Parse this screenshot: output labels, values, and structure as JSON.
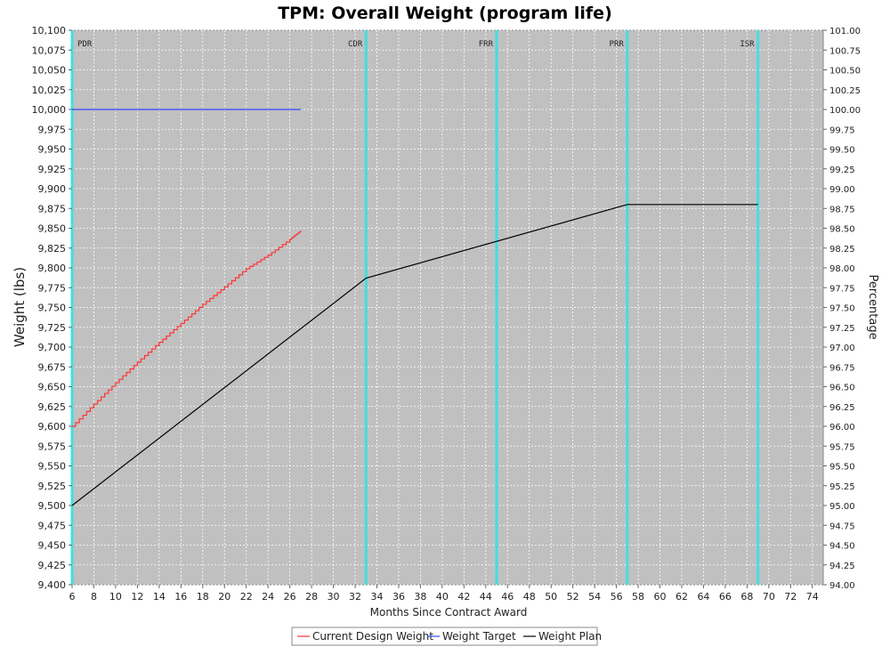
{
  "chart_data": {
    "type": "line",
    "title": "TPM: Overall Weight (program life)",
    "xlabel": "Months Since Contract Award",
    "ylabel": "Weight (lbs)",
    "y2label": "Percentage",
    "xlim": [
      6,
      75
    ],
    "ylim": [
      9400,
      10100
    ],
    "y2lim": [
      94,
      101
    ],
    "xticks": [
      6,
      8,
      10,
      12,
      14,
      16,
      18,
      20,
      22,
      24,
      26,
      28,
      30,
      32,
      34,
      36,
      38,
      40,
      42,
      44,
      46,
      48,
      50,
      52,
      54,
      56,
      58,
      60,
      62,
      64,
      66,
      68,
      70,
      72,
      74
    ],
    "yticks": [
      "9,400",
      "9,425",
      "9,450",
      "9,475",
      "9,500",
      "9,525",
      "9,550",
      "9,575",
      "9,600",
      "9,625",
      "9,650",
      "9,675",
      "9,700",
      "9,725",
      "9,750",
      "9,775",
      "9,800",
      "9,825",
      "9,850",
      "9,875",
      "9,900",
      "9,925",
      "9,950",
      "9,975",
      "10,000",
      "10,025",
      "10,050",
      "10,075",
      "10,100"
    ],
    "y2ticks": [
      "94.00",
      "94.25",
      "94.50",
      "94.75",
      "95.00",
      "95.25",
      "95.50",
      "95.75",
      "96.00",
      "96.25",
      "96.50",
      "96.75",
      "97.00",
      "97.25",
      "97.50",
      "97.75",
      "98.00",
      "98.25",
      "98.50",
      "98.75",
      "99.00",
      "99.25",
      "99.50",
      "99.75",
      "100.00",
      "100.25",
      "100.50",
      "100.75",
      "101.00"
    ],
    "grid": true,
    "plot_background": "#c0c0c0",
    "milestones": [
      {
        "label": "PDR",
        "x": 6
      },
      {
        "label": "CDR",
        "x": 33
      },
      {
        "label": "FRR",
        "x": 45
      },
      {
        "label": "PRR",
        "x": 57
      },
      {
        "label": "ISR",
        "x": 69
      }
    ],
    "milestone_color": "#40e0e0",
    "series": [
      {
        "name": "Current Design Weight",
        "color": "#ff3333",
        "style": "step",
        "points": [
          [
            6,
            9600
          ],
          [
            8,
            9628
          ],
          [
            10,
            9655
          ],
          [
            12,
            9681
          ],
          [
            14,
            9706
          ],
          [
            16,
            9730
          ],
          [
            18,
            9754
          ],
          [
            20,
            9776
          ],
          [
            22,
            9799
          ],
          [
            24,
            9816
          ],
          [
            26,
            9836
          ],
          [
            27,
            9847
          ]
        ]
      },
      {
        "name": "Weight Target",
        "color": "#3344ff",
        "style": "line",
        "points": [
          [
            6,
            10000
          ],
          [
            27,
            10000
          ]
        ]
      },
      {
        "name": "Weight Plan",
        "color": "#000000",
        "style": "line",
        "points": [
          [
            6,
            9500
          ],
          [
            33,
            9787
          ],
          [
            57,
            9880
          ],
          [
            69,
            9880
          ]
        ]
      }
    ],
    "legend_position": "bottom"
  }
}
